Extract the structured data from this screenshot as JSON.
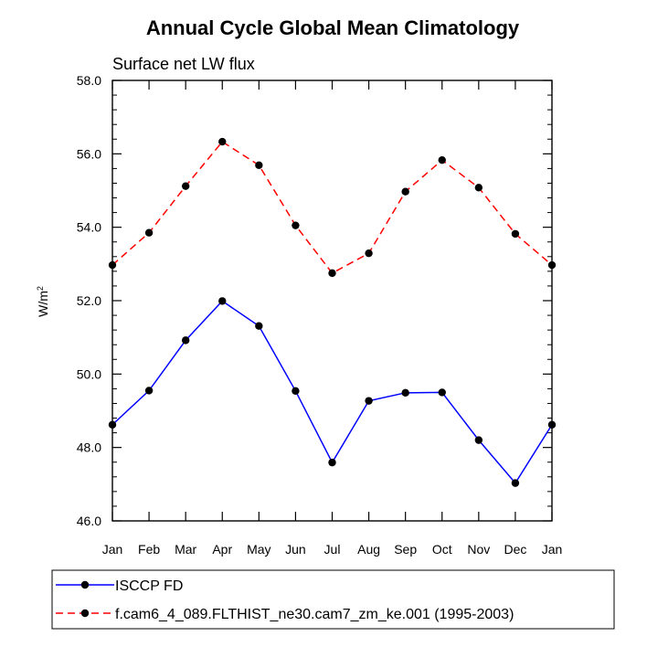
{
  "chart_data": {
    "type": "line",
    "title": "Annual Cycle Global Mean Climatology",
    "subtitle": "Surface net LW flux",
    "ylabel_base": "W/m",
    "ylabel_sup": "2",
    "xlabel": "",
    "categories": [
      "Jan",
      "Feb",
      "Mar",
      "Apr",
      "May",
      "Jun",
      "Jul",
      "Aug",
      "Sep",
      "Oct",
      "Nov",
      "Dec",
      "Jan"
    ],
    "ylim": [
      46.0,
      58.0
    ],
    "yticks": [
      46.0,
      48.0,
      50.0,
      52.0,
      54.0,
      56.0,
      58.0
    ],
    "ytick_labels": [
      "46.0",
      "48.0",
      "50.0",
      "52.0",
      "54.0",
      "56.0",
      "58.0"
    ],
    "series": [
      {
        "name": "ISCCP FD",
        "color": "#0000ff",
        "dash": "solid",
        "values": [
          48.62,
          49.55,
          50.92,
          51.99,
          51.31,
          49.54,
          47.59,
          49.27,
          49.49,
          49.5,
          48.2,
          47.03,
          48.62
        ]
      },
      {
        "name": "f.cam6_4_089.FLTHIST_ne30.cam7_zm_ke.001 (1995-2003)",
        "color": "#ff0000",
        "dash": "dashed",
        "values": [
          52.97,
          53.85,
          55.12,
          56.33,
          55.69,
          54.05,
          52.75,
          53.29,
          54.97,
          55.83,
          55.08,
          53.82,
          52.97
        ]
      }
    ],
    "legend_position": "bottom-left"
  }
}
